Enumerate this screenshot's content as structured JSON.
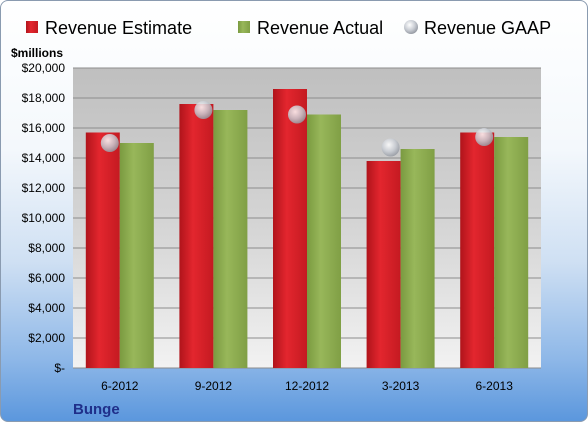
{
  "chart_data": {
    "type": "bar",
    "unit_label": "$millions",
    "company": "Bunge",
    "categories": [
      "6-2012",
      "9-2012",
      "12-2012",
      "3-2013",
      "6-2013"
    ],
    "series": [
      {
        "name": "Revenue Estimate",
        "kind": "bar",
        "color": "#d42027",
        "values": [
          15700,
          17600,
          18600,
          13800,
          15700
        ]
      },
      {
        "name": "Revenue Actual",
        "kind": "bar",
        "color": "#8aa84e",
        "values": [
          15000,
          17200,
          16900,
          14600,
          15400
        ]
      },
      {
        "name": "Revenue GAAP",
        "kind": "marker",
        "color": "#b8bcc4",
        "values": [
          15000,
          17200,
          16900,
          14700,
          15400
        ]
      }
    ],
    "y_ticks": [
      0,
      2000,
      4000,
      6000,
      8000,
      10000,
      12000,
      14000,
      16000,
      18000,
      20000
    ],
    "y_tick_labels": [
      "$-",
      "$2,000",
      "$4,000",
      "$6,000",
      "$8,000",
      "$10,000",
      "$12,000",
      "$14,000",
      "$16,000",
      "$18,000",
      "$20,000"
    ],
    "ylim": [
      0,
      20000
    ],
    "grid": true,
    "legend_position": "top"
  }
}
